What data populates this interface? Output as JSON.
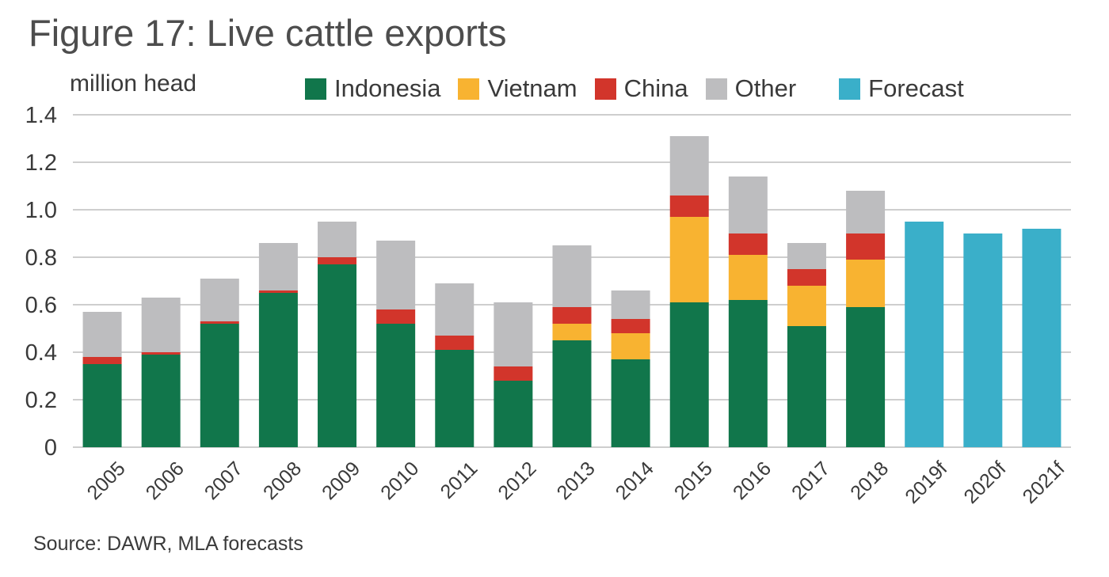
{
  "title": "Figure 17: Live cattle exports",
  "source": "Source: DAWR, MLA forecasts",
  "colors": {
    "Indonesia": "#11764b",
    "Vietnam": "#f8b331",
    "China": "#d2352b",
    "Other": "#bdbdbf",
    "Forecast": "#3aafc9",
    "grid": "#bdbdbd"
  },
  "chart_data": {
    "type": "bar",
    "stacked": true,
    "ylabel": "million head",
    "ylim": [
      0,
      1.4
    ],
    "yticks": [
      "0",
      "0.2",
      "0.4",
      "0.6",
      "0.8",
      "1.0",
      "1.2",
      "1.4"
    ],
    "ytick_values": [
      0,
      0.2,
      0.4,
      0.6,
      0.8,
      1.0,
      1.2,
      1.4
    ],
    "grid": true,
    "legend_position": "top",
    "categories": [
      "2005",
      "2006",
      "2007",
      "2008",
      "2009",
      "2010",
      "2011",
      "2012",
      "2013",
      "2014",
      "2015",
      "2016",
      "2017",
      "2018",
      "2019f",
      "2020f",
      "2021f"
    ],
    "series": [
      {
        "name": "Indonesia",
        "values": [
          0.35,
          0.39,
          0.52,
          0.65,
          0.77,
          0.52,
          0.41,
          0.28,
          0.45,
          0.37,
          0.61,
          0.62,
          0.51,
          0.59,
          0,
          0,
          0
        ]
      },
      {
        "name": "Vietnam",
        "values": [
          0,
          0,
          0,
          0,
          0,
          0,
          0,
          0,
          0.07,
          0.11,
          0.36,
          0.19,
          0.17,
          0.2,
          0,
          0,
          0
        ]
      },
      {
        "name": "China",
        "values": [
          0.03,
          0.01,
          0.01,
          0.01,
          0.03,
          0.06,
          0.06,
          0.06,
          0.07,
          0.06,
          0.09,
          0.09,
          0.07,
          0.11,
          0,
          0,
          0
        ]
      },
      {
        "name": "Other",
        "values": [
          0.19,
          0.23,
          0.18,
          0.2,
          0.15,
          0.29,
          0.22,
          0.27,
          0.26,
          0.12,
          0.25,
          0.24,
          0.11,
          0.18,
          0,
          0,
          0
        ]
      },
      {
        "name": "Forecast",
        "values": [
          0,
          0,
          0,
          0,
          0,
          0,
          0,
          0,
          0,
          0,
          0,
          0,
          0,
          0,
          0.95,
          0.9,
          0.92
        ]
      }
    ]
  }
}
